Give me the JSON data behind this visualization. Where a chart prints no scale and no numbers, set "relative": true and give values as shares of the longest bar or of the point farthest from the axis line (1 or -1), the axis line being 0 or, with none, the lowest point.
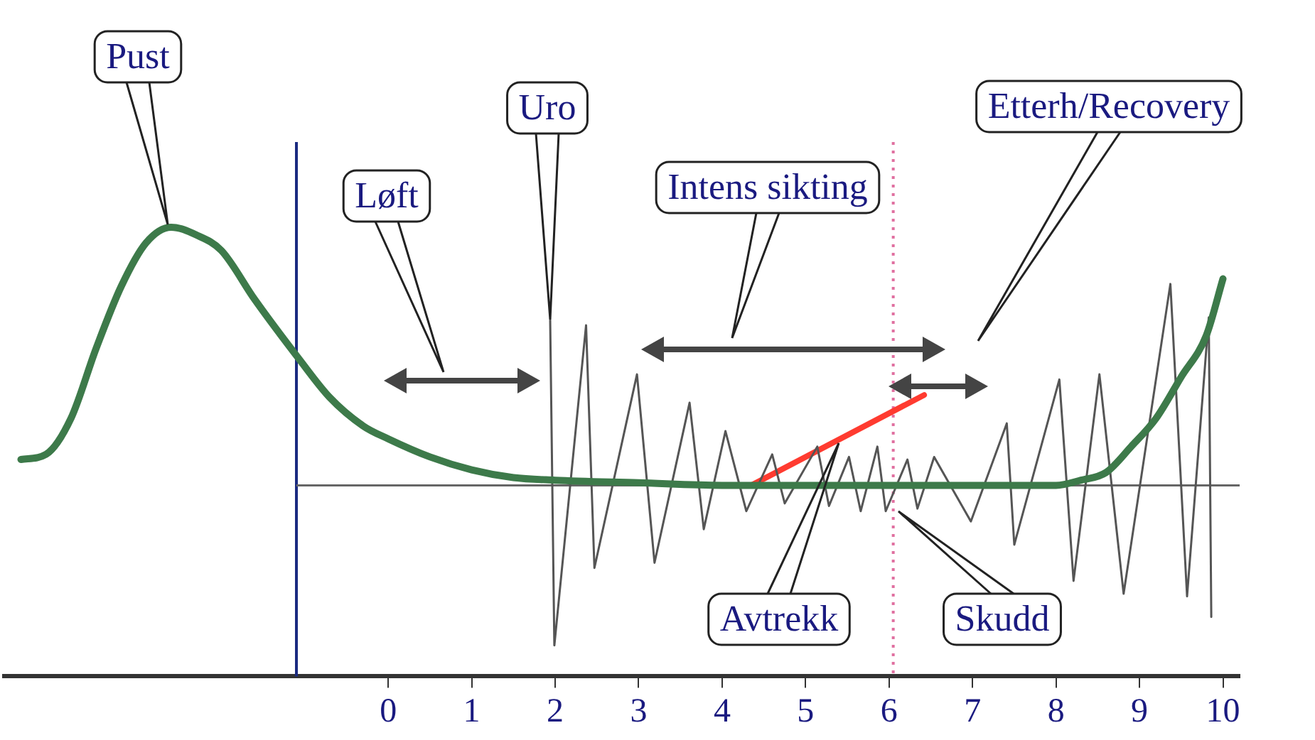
{
  "chart_data": {
    "type": "line",
    "relative": true,
    "legend": false,
    "grid": false,
    "marker": "none",
    "line_style": "solid",
    "xlim": [
      -4.6,
      10.2
    ],
    "xticks": [
      0,
      1,
      2,
      3,
      4,
      5,
      6,
      7,
      8,
      9,
      10
    ],
    "series": [
      {
        "color": "#3d7a4a",
        "x": [
          -4.4,
          -4.1,
          -3.8,
          -3.5,
          -3.2,
          -2.9,
          -2.6,
          -2.3,
          -2.0,
          -1.6,
          -1.07,
          -0.7,
          -0.3,
          0,
          0.5,
          1,
          1.5,
          2,
          3,
          4,
          5,
          6,
          7,
          8,
          8.3,
          8.6,
          8.9,
          9.2,
          9.5,
          9.8,
          10
        ],
        "values": [
          0.1,
          0.12,
          0.26,
          0.53,
          0.77,
          0.94,
          1.0,
          0.97,
          0.91,
          0.72,
          0.49,
          0.34,
          0.23,
          0.18,
          0.11,
          0.06,
          0.03,
          0.02,
          0.01,
          0,
          0,
          0,
          0,
          0,
          0.02,
          0.05,
          0.15,
          0.26,
          0.42,
          0.58,
          0.8
        ]
      },
      {
        "color": "#555555",
        "x": [
          1.94,
          1.99,
          2.37,
          2.47,
          2.98,
          3.19,
          3.61,
          3.78,
          4.04,
          4.29,
          4.6,
          4.75,
          5.14,
          5.28,
          5.52,
          5.66,
          5.86,
          5.96,
          6.22,
          6.34,
          6.54,
          6.98,
          7.41,
          7.5,
          8.04,
          8.21,
          8.52,
          8.81,
          9.37,
          9.57,
          9.83,
          9.86
        ],
        "values": [
          0.64,
          -0.62,
          0.62,
          -0.32,
          0.43,
          -0.3,
          0.32,
          -0.17,
          0.21,
          -0.1,
          0.12,
          -0.07,
          0.15,
          -0.08,
          0.11,
          -0.1,
          0.15,
          -0.1,
          0.1,
          -0.09,
          0.11,
          -0.14,
          0.24,
          -0.23,
          0.41,
          -0.37,
          0.43,
          -0.42,
          0.78,
          -0.43,
          0.65,
          -0.51
        ]
      },
      {
        "color": "#ff3b30",
        "x": [
          4.35,
          6.42
        ],
        "values": [
          0,
          0.35
        ]
      }
    ],
    "ref_lines": [
      {
        "axis": "x",
        "value": -1.1,
        "color": "#1a2a80"
      },
      {
        "axis": "y",
        "value": 0,
        "color": "#666666"
      },
      {
        "axis": "x",
        "value": 6.05,
        "color": "#e070a0",
        "line_style": "dotted"
      }
    ],
    "annotations": [
      "Pust",
      "Løft",
      "Uro",
      "Intens sikting",
      "Etterh/Recovery",
      "Avtrekk",
      "Skudd"
    ]
  }
}
